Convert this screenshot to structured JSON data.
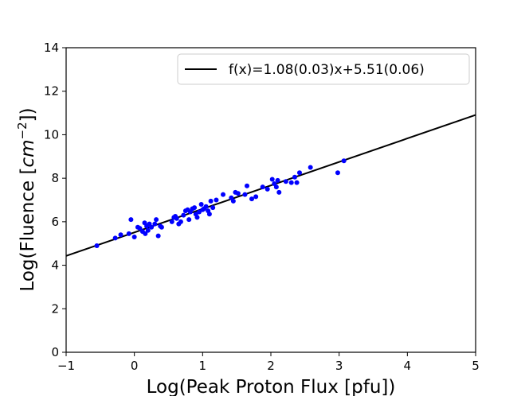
{
  "chart_data": {
    "type": "scatter",
    "title": "",
    "xlabel": "Log(Peak Proton Flux [pfu])",
    "ylabel_text": "Log(Fluence [",
    "ylabel_math": "cm",
    "ylabel_exp": "−2",
    "ylabel_close": "])",
    "xlim": [
      -1,
      5
    ],
    "ylim": [
      0,
      14
    ],
    "xticks": [
      -1,
      0,
      1,
      2,
      3,
      4,
      5
    ],
    "xtick_labels": [
      "−1",
      "0",
      "1",
      "2",
      "3",
      "4",
      "5"
    ],
    "yticks": [
      0,
      2,
      4,
      6,
      8,
      10,
      12,
      14
    ],
    "ytick_labels": [
      "0",
      "2",
      "4",
      "6",
      "8",
      "10",
      "12",
      "14"
    ],
    "grid": false,
    "legend_position": "top-right",
    "fit": {
      "label": "f(x)=1.08(0.03)x+5.51(0.06)",
      "slope": 1.08,
      "intercept": 5.51,
      "color": "#000000"
    },
    "series": [
      {
        "marker_color": "#0000ff",
        "points": [
          [
            -0.55,
            4.9
          ],
          [
            -0.28,
            5.25
          ],
          [
            -0.2,
            5.4
          ],
          [
            -0.08,
            5.45
          ],
          [
            -0.05,
            6.1
          ],
          [
            0.0,
            5.3
          ],
          [
            0.05,
            5.75
          ],
          [
            0.08,
            5.7
          ],
          [
            0.12,
            5.55
          ],
          [
            0.15,
            5.95
          ],
          [
            0.16,
            5.45
          ],
          [
            0.18,
            5.8
          ],
          [
            0.2,
            5.6
          ],
          [
            0.22,
            5.9
          ],
          [
            0.25,
            5.75
          ],
          [
            0.3,
            5.9
          ],
          [
            0.32,
            6.1
          ],
          [
            0.35,
            5.35
          ],
          [
            0.38,
            5.8
          ],
          [
            0.4,
            5.75
          ],
          [
            0.55,
            6.0
          ],
          [
            0.58,
            6.2
          ],
          [
            0.6,
            6.25
          ],
          [
            0.62,
            6.15
          ],
          [
            0.65,
            5.9
          ],
          [
            0.68,
            6.0
          ],
          [
            0.72,
            6.3
          ],
          [
            0.75,
            6.5
          ],
          [
            0.78,
            6.55
          ],
          [
            0.8,
            6.1
          ],
          [
            0.82,
            6.45
          ],
          [
            0.85,
            6.6
          ],
          [
            0.88,
            6.65
          ],
          [
            0.9,
            6.35
          ],
          [
            0.92,
            6.2
          ],
          [
            0.95,
            6.45
          ],
          [
            0.98,
            6.8
          ],
          [
            1.0,
            6.55
          ],
          [
            1.02,
            6.6
          ],
          [
            1.05,
            6.7
          ],
          [
            1.08,
            6.5
          ],
          [
            1.1,
            6.35
          ],
          [
            1.12,
            6.95
          ],
          [
            1.15,
            6.65
          ],
          [
            1.2,
            7.0
          ],
          [
            1.3,
            7.25
          ],
          [
            1.42,
            7.1
          ],
          [
            1.45,
            6.95
          ],
          [
            1.48,
            7.35
          ],
          [
            1.52,
            7.3
          ],
          [
            1.62,
            7.25
          ],
          [
            1.65,
            7.65
          ],
          [
            1.72,
            7.05
          ],
          [
            1.78,
            7.15
          ],
          [
            1.88,
            7.6
          ],
          [
            1.95,
            7.5
          ],
          [
            2.02,
            7.95
          ],
          [
            2.05,
            7.75
          ],
          [
            2.08,
            7.6
          ],
          [
            2.1,
            7.9
          ],
          [
            2.12,
            7.35
          ],
          [
            2.22,
            7.85
          ],
          [
            2.3,
            7.8
          ],
          [
            2.35,
            8.05
          ],
          [
            2.38,
            7.8
          ],
          [
            2.42,
            8.25
          ],
          [
            2.58,
            8.5
          ],
          [
            2.98,
            8.25
          ],
          [
            3.07,
            8.8
          ]
        ]
      }
    ]
  }
}
